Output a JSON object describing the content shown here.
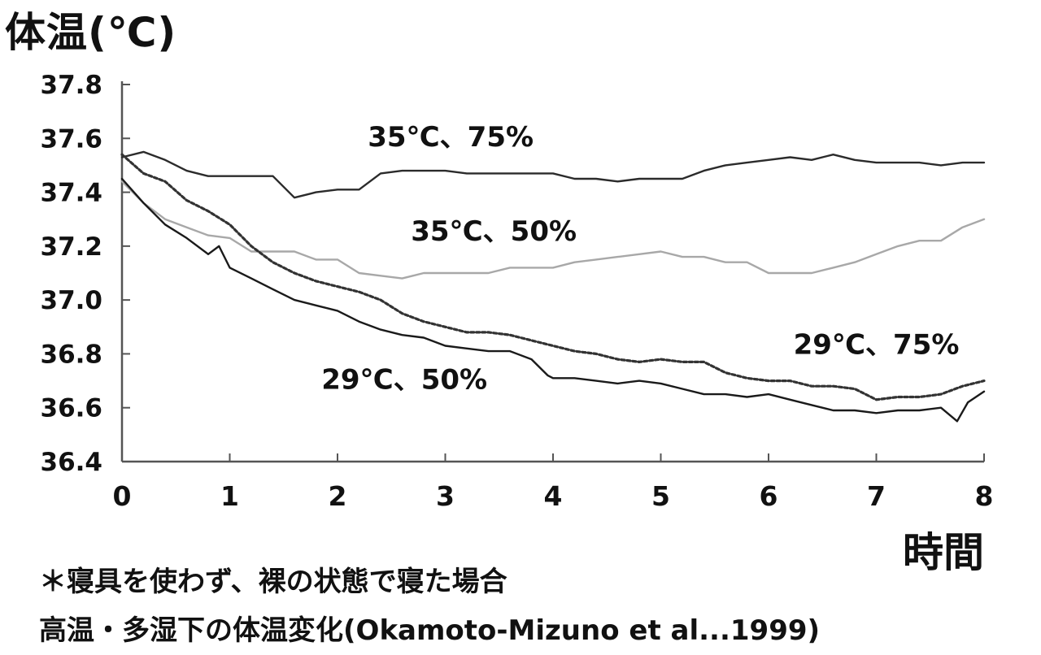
{
  "chart_data": {
    "type": "line",
    "ylabel": "体温(℃)",
    "xlabel": "時間",
    "xlim": [
      0,
      8
    ],
    "ylim": [
      36.4,
      37.8
    ],
    "x_ticks": [
      "0",
      "1",
      "2",
      "3",
      "4",
      "5",
      "6",
      "7",
      "8"
    ],
    "y_ticks": [
      "36.4",
      "36.6",
      "36.8",
      "37.0",
      "37.2",
      "37.4",
      "37.6",
      "37.8"
    ],
    "grid": false,
    "series": [
      {
        "name": "35℃、75%",
        "color": "#2b2b2b",
        "style": "solid",
        "x": [
          0,
          0.2,
          0.4,
          0.6,
          0.8,
          1.0,
          1.2,
          1.4,
          1.6,
          1.8,
          2.0,
          2.2,
          2.4,
          2.6,
          2.8,
          3.0,
          3.2,
          3.4,
          3.6,
          3.8,
          4.0,
          4.2,
          4.4,
          4.6,
          4.8,
          5.0,
          5.2,
          5.4,
          5.6,
          5.8,
          6.0,
          6.2,
          6.4,
          6.6,
          6.8,
          7.0,
          7.2,
          7.4,
          7.6,
          7.8,
          8.0
        ],
        "values": [
          37.53,
          37.55,
          37.52,
          37.48,
          37.46,
          37.46,
          37.46,
          37.46,
          37.38,
          37.4,
          37.41,
          37.41,
          37.47,
          37.48,
          37.48,
          37.48,
          37.47,
          37.47,
          37.47,
          37.47,
          37.47,
          37.45,
          37.45,
          37.44,
          37.45,
          37.45,
          37.45,
          37.48,
          37.5,
          37.51,
          37.52,
          37.53,
          37.52,
          37.54,
          37.52,
          37.51,
          37.51,
          37.51,
          37.5,
          37.51,
          37.51
        ]
      },
      {
        "name": "35℃、50%",
        "color": "#a8a8a8",
        "style": "solid",
        "x": [
          0,
          0.2,
          0.4,
          0.6,
          0.8,
          1.0,
          1.2,
          1.4,
          1.6,
          1.8,
          2.0,
          2.2,
          2.4,
          2.6,
          2.8,
          3.0,
          3.2,
          3.4,
          3.6,
          3.8,
          4.0,
          4.2,
          4.4,
          4.6,
          4.8,
          5.0,
          5.2,
          5.4,
          5.6,
          5.8,
          6.0,
          6.2,
          6.4,
          6.6,
          6.8,
          7.0,
          7.2,
          7.4,
          7.6,
          7.8,
          8.0
        ],
        "values": [
          37.44,
          37.36,
          37.3,
          37.27,
          37.24,
          37.23,
          37.18,
          37.18,
          37.18,
          37.15,
          37.15,
          37.1,
          37.09,
          37.08,
          37.1,
          37.1,
          37.1,
          37.1,
          37.12,
          37.12,
          37.12,
          37.14,
          37.15,
          37.16,
          37.17,
          37.18,
          37.16,
          37.16,
          37.14,
          37.14,
          37.1,
          37.1,
          37.1,
          37.12,
          37.14,
          37.17,
          37.2,
          37.22,
          37.22,
          37.27,
          37.3
        ]
      },
      {
        "name": "29℃、75%",
        "color": "#333333",
        "style": "dashed",
        "x": [
          0,
          0.2,
          0.4,
          0.6,
          0.8,
          1.0,
          1.2,
          1.4,
          1.6,
          1.8,
          2.0,
          2.2,
          2.4,
          2.6,
          2.8,
          3.0,
          3.2,
          3.4,
          3.6,
          3.8,
          4.0,
          4.2,
          4.4,
          4.6,
          4.8,
          5.0,
          5.2,
          5.4,
          5.6,
          5.8,
          6.0,
          6.2,
          6.4,
          6.6,
          6.8,
          7.0,
          7.2,
          7.4,
          7.6,
          7.8,
          8.0
        ],
        "values": [
          37.54,
          37.47,
          37.44,
          37.37,
          37.33,
          37.28,
          37.2,
          37.14,
          37.1,
          37.07,
          37.05,
          37.03,
          37.0,
          36.95,
          36.92,
          36.9,
          36.88,
          36.88,
          36.87,
          36.85,
          36.83,
          36.81,
          36.8,
          36.78,
          36.77,
          36.78,
          36.77,
          36.77,
          36.73,
          36.71,
          36.7,
          36.7,
          36.68,
          36.68,
          36.67,
          36.63,
          36.64,
          36.64,
          36.65,
          36.68,
          36.7
        ]
      },
      {
        "name": "29℃、50%",
        "color": "#1a1a1a",
        "style": "solid",
        "x": [
          0,
          0.2,
          0.4,
          0.6,
          0.8,
          0.9,
          1.0,
          1.2,
          1.4,
          1.6,
          1.8,
          2.0,
          2.2,
          2.4,
          2.6,
          2.8,
          3.0,
          3.2,
          3.4,
          3.6,
          3.8,
          3.95,
          4.0,
          4.2,
          4.4,
          4.6,
          4.8,
          5.0,
          5.2,
          5.4,
          5.6,
          5.8,
          6.0,
          6.2,
          6.4,
          6.6,
          6.8,
          7.0,
          7.2,
          7.4,
          7.6,
          7.75,
          7.85,
          8.0
        ],
        "values": [
          37.45,
          37.36,
          37.28,
          37.23,
          37.17,
          37.2,
          37.12,
          37.08,
          37.04,
          37.0,
          36.98,
          36.96,
          36.92,
          36.89,
          36.87,
          36.86,
          36.83,
          36.82,
          36.81,
          36.81,
          36.78,
          36.72,
          36.71,
          36.71,
          36.7,
          36.69,
          36.7,
          36.69,
          36.67,
          36.65,
          36.65,
          36.64,
          36.65,
          36.63,
          36.61,
          36.59,
          36.59,
          36.58,
          36.59,
          36.59,
          36.6,
          36.55,
          36.62,
          36.66
        ]
      }
    ],
    "annotations": [
      {
        "text": "35℃、75%",
        "x": 3.05,
        "y": 37.57
      },
      {
        "text": "35℃、50%",
        "x": 3.45,
        "y": 37.22
      },
      {
        "text": "29℃、75%",
        "x": 7.0,
        "y": 36.8
      },
      {
        "text": "29℃、50%",
        "x": 2.62,
        "y": 36.67
      }
    ]
  },
  "notes": {
    "line1": "＊寝具を使わず、裸の状態で寝た場合",
    "line2": "高温・多湿下の体温変化(Okamoto-Mizuno et al...1999)"
  }
}
